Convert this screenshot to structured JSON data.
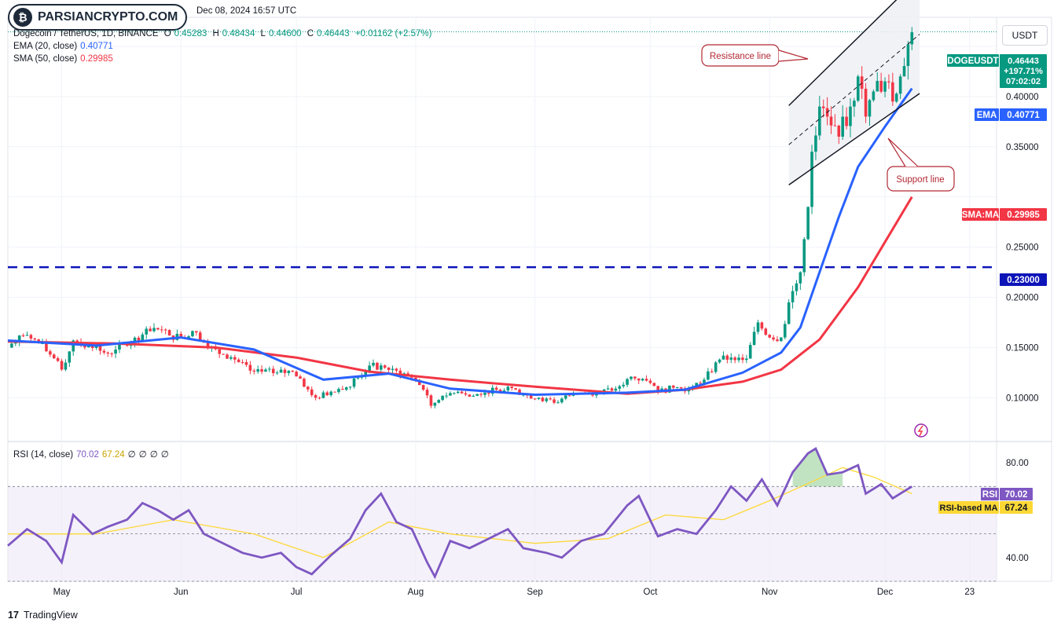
{
  "watermark": "PARSIANCRYPTO.COM",
  "header": {
    "date": "Dec 08, 2024 16:57 UTC",
    "symbol": "Dogecoin / TetherUS, 1D, BINANCE",
    "o_label": "O",
    "o": "0.45283",
    "h_label": "H",
    "h": "0.48434",
    "l_label": "L",
    "l": "0.44600",
    "c_label": "C",
    "c": "0.46443",
    "change": "+0.01162 (+2.57%)",
    "ema_label": "EMA (20, close)",
    "ema_value": "0.40771",
    "sma_label": "SMA (50, close)",
    "sma_value": "0.29985",
    "rsi_label": "RSI (14, close)",
    "rsi_value": "70.02",
    "rsi_ma_value": "67.24",
    "rsi_extra": [
      "∅",
      "∅",
      "∅",
      "∅"
    ]
  },
  "currency_button": "USDT",
  "footer_brand": "TradingView",
  "colors": {
    "up": "#089981",
    "down": "#f23645",
    "ema": "#2962ff",
    "sma": "#f23645",
    "rsi": "#7e57c2",
    "rsi_ma": "#fdd835",
    "support_level": "#0d14b8",
    "annotation": "#b22833"
  },
  "annotations": {
    "resistance": "Resistance line",
    "support": "Support line"
  },
  "price_badges": {
    "symbol": "DOGEUSDT",
    "last": "0.46443",
    "change_pct": "+197.71%",
    "countdown": "07:02:02",
    "ema_tag": "EMA",
    "ema": "0.40771",
    "sma_tag": "SMA:MA",
    "sma": "0.29985",
    "level": "0.23000",
    "rsi_tag": "RSI",
    "rsi": "70.02",
    "rsi_ma_tag": "RSI-based MA",
    "rsi_ma": "67.24"
  },
  "chart_data": [
    {
      "type": "candlestick",
      "title": "Dogecoin / TetherUS, 1D, BINANCE",
      "y_ticks": [
        "0.40000",
        "0.35000",
        "0.25000",
        "0.20000",
        "0.15000",
        "0.10000"
      ],
      "y_tick_values": [
        0.4,
        0.35,
        0.25,
        0.2,
        0.15,
        0.1
      ],
      "ylim": [
        0.058,
        0.475
      ],
      "x_ticks": [
        "May",
        "Jun",
        "Jul",
        "Aug",
        "Sep",
        "Oct",
        "Nov",
        "Dec",
        "23"
      ],
      "x_tick_dates": [
        "2024-05-01",
        "2024-06-01",
        "2024-07-01",
        "2024-08-01",
        "2024-09-01",
        "2024-10-01",
        "2024-11-01",
        "2024-12-01",
        "2024-12-23"
      ],
      "xlim": [
        "2024-04-17",
        "2024-12-30"
      ],
      "close_series": [
        [
          "2024-04-17",
          0.15
        ],
        [
          "2024-04-20",
          0.162
        ],
        [
          "2024-04-24",
          0.158
        ],
        [
          "2024-04-28",
          0.143
        ],
        [
          "2024-05-01",
          0.128
        ],
        [
          "2024-05-04",
          0.157
        ],
        [
          "2024-05-08",
          0.152
        ],
        [
          "2024-05-12",
          0.145
        ],
        [
          "2024-05-15",
          0.148
        ],
        [
          "2024-05-19",
          0.155
        ],
        [
          "2024-05-22",
          0.163
        ],
        [
          "2024-05-26",
          0.168
        ],
        [
          "2024-05-29",
          0.162
        ],
        [
          "2024-06-01",
          0.16
        ],
        [
          "2024-06-05",
          0.165
        ],
        [
          "2024-06-08",
          0.15
        ],
        [
          "2024-06-12",
          0.143
        ],
        [
          "2024-06-15",
          0.138
        ],
        [
          "2024-06-19",
          0.127
        ],
        [
          "2024-06-22",
          0.126
        ],
        [
          "2024-06-26",
          0.125
        ],
        [
          "2024-06-30",
          0.126
        ],
        [
          "2024-07-03",
          0.111
        ],
        [
          "2024-07-06",
          0.1
        ],
        [
          "2024-07-10",
          0.106
        ],
        [
          "2024-07-13",
          0.108
        ],
        [
          "2024-07-17",
          0.12
        ],
        [
          "2024-07-20",
          0.132
        ],
        [
          "2024-07-24",
          0.13
        ],
        [
          "2024-07-27",
          0.127
        ],
        [
          "2024-07-31",
          0.12
        ],
        [
          "2024-08-03",
          0.108
        ],
        [
          "2024-08-05",
          0.092
        ],
        [
          "2024-08-08",
          0.102
        ],
        [
          "2024-08-12",
          0.106
        ],
        [
          "2024-08-15",
          0.101
        ],
        [
          "2024-08-19",
          0.105
        ],
        [
          "2024-08-22",
          0.108
        ],
        [
          "2024-08-25",
          0.111
        ],
        [
          "2024-08-29",
          0.103
        ],
        [
          "2024-09-02",
          0.1
        ],
        [
          "2024-09-06",
          0.095
        ],
        [
          "2024-09-10",
          0.102
        ],
        [
          "2024-09-14",
          0.104
        ],
        [
          "2024-09-18",
          0.106
        ],
        [
          "2024-09-22",
          0.109
        ],
        [
          "2024-09-26",
          0.121
        ],
        [
          "2024-09-30",
          0.117
        ],
        [
          "2024-10-03",
          0.106
        ],
        [
          "2024-10-07",
          0.11
        ],
        [
          "2024-10-11",
          0.109
        ],
        [
          "2024-10-15",
          0.118
        ],
        [
          "2024-10-19",
          0.138
        ],
        [
          "2024-10-22",
          0.14
        ],
        [
          "2024-10-26",
          0.139
        ],
        [
          "2024-10-29",
          0.175
        ],
        [
          "2024-11-01",
          0.16
        ],
        [
          "2024-11-04",
          0.16
        ],
        [
          "2024-11-06",
          0.195
        ],
        [
          "2024-11-09",
          0.225
        ],
        [
          "2024-11-11",
          0.29
        ],
        [
          "2024-11-12",
          0.345
        ],
        [
          "2024-11-14",
          0.39
        ],
        [
          "2024-11-16",
          0.38
        ],
        [
          "2024-11-19",
          0.36
        ],
        [
          "2024-11-22",
          0.39
        ],
        [
          "2024-11-24",
          0.42
        ],
        [
          "2024-11-26",
          0.38
        ],
        [
          "2024-11-28",
          0.405
        ],
        [
          "2024-12-01",
          0.415
        ],
        [
          "2024-12-03",
          0.395
        ],
        [
          "2024-12-05",
          0.42
        ],
        [
          "2024-12-07",
          0.452
        ],
        [
          "2024-12-08",
          0.464
        ]
      ],
      "ema20_series": [
        [
          "2024-04-17",
          0.157
        ],
        [
          "2024-05-10",
          0.152
        ],
        [
          "2024-06-01",
          0.16
        ],
        [
          "2024-06-20",
          0.148
        ],
        [
          "2024-07-08",
          0.118
        ],
        [
          "2024-07-25",
          0.124
        ],
        [
          "2024-08-10",
          0.109
        ],
        [
          "2024-09-01",
          0.103
        ],
        [
          "2024-09-25",
          0.105
        ],
        [
          "2024-10-10",
          0.108
        ],
        [
          "2024-10-25",
          0.125
        ],
        [
          "2024-11-04",
          0.145
        ],
        [
          "2024-11-09",
          0.17
        ],
        [
          "2024-11-14",
          0.225
        ],
        [
          "2024-11-19",
          0.28
        ],
        [
          "2024-11-24",
          0.33
        ],
        [
          "2024-12-01",
          0.37
        ],
        [
          "2024-12-08",
          0.408
        ]
      ],
      "sma50_series": [
        [
          "2024-04-17",
          0.156
        ],
        [
          "2024-05-15",
          0.154
        ],
        [
          "2024-06-10",
          0.15
        ],
        [
          "2024-07-01",
          0.14
        ],
        [
          "2024-07-20",
          0.126
        ],
        [
          "2024-08-10",
          0.118
        ],
        [
          "2024-09-01",
          0.111
        ],
        [
          "2024-09-25",
          0.104
        ],
        [
          "2024-10-10",
          0.108
        ],
        [
          "2024-10-25",
          0.116
        ],
        [
          "2024-11-04",
          0.128
        ],
        [
          "2024-11-14",
          0.158
        ],
        [
          "2024-11-24",
          0.21
        ],
        [
          "2024-12-01",
          0.255
        ],
        [
          "2024-12-08",
          0.3
        ]
      ],
      "horizontal_level": 0.23,
      "channel": {
        "resistance": [
          [
            "2024-11-06",
            0.391
          ],
          [
            "2024-12-10",
            0.519
          ]
        ],
        "support": [
          [
            "2024-11-06",
            0.312
          ],
          [
            "2024-12-10",
            0.403
          ]
        ],
        "mid": [
          [
            "2024-11-06",
            0.352
          ],
          [
            "2024-12-10",
            0.462
          ]
        ]
      }
    },
    {
      "type": "line",
      "title": "RSI (14, close)",
      "y_ticks": [
        "80.00",
        "60.00",
        "40.00"
      ],
      "y_tick_values": [
        80,
        60,
        40
      ],
      "ylim": [
        30,
        88
      ],
      "band": [
        30,
        70
      ],
      "series": [
        {
          "name": "RSI",
          "points": [
            [
              "2024-04-17",
              45
            ],
            [
              "2024-04-22",
              52
            ],
            [
              "2024-04-27",
              47
            ],
            [
              "2024-05-01",
              38
            ],
            [
              "2024-05-04",
              58
            ],
            [
              "2024-05-09",
              50
            ],
            [
              "2024-05-13",
              53
            ],
            [
              "2024-05-18",
              56
            ],
            [
              "2024-05-22",
              63
            ],
            [
              "2024-05-26",
              60
            ],
            [
              "2024-05-30",
              56
            ],
            [
              "2024-06-03",
              60
            ],
            [
              "2024-06-07",
              50
            ],
            [
              "2024-06-12",
              46
            ],
            [
              "2024-06-17",
              42
            ],
            [
              "2024-06-22",
              40
            ],
            [
              "2024-06-27",
              42
            ],
            [
              "2024-07-01",
              36
            ],
            [
              "2024-07-05",
              33
            ],
            [
              "2024-07-10",
              41
            ],
            [
              "2024-07-15",
              48
            ],
            [
              "2024-07-19",
              60
            ],
            [
              "2024-07-23",
              67
            ],
            [
              "2024-07-27",
              55
            ],
            [
              "2024-07-31",
              52
            ],
            [
              "2024-08-04",
              38
            ],
            [
              "2024-08-06",
              32
            ],
            [
              "2024-08-10",
              47
            ],
            [
              "2024-08-15",
              44
            ],
            [
              "2024-08-20",
              48
            ],
            [
              "2024-08-25",
              52
            ],
            [
              "2024-08-29",
              44
            ],
            [
              "2024-09-04",
              42
            ],
            [
              "2024-09-08",
              40
            ],
            [
              "2024-09-13",
              47
            ],
            [
              "2024-09-19",
              50
            ],
            [
              "2024-09-25",
              62
            ],
            [
              "2024-09-28",
              66
            ],
            [
              "2024-10-03",
              49
            ],
            [
              "2024-10-08",
              52
            ],
            [
              "2024-10-13",
              50
            ],
            [
              "2024-10-18",
              60
            ],
            [
              "2024-10-22",
              70
            ],
            [
              "2024-10-26",
              64
            ],
            [
              "2024-10-30",
              73
            ],
            [
              "2024-11-03",
              62
            ],
            [
              "2024-11-07",
              76
            ],
            [
              "2024-11-11",
              84
            ],
            [
              "2024-11-13",
              86
            ],
            [
              "2024-11-16",
              75
            ],
            [
              "2024-11-20",
              76
            ],
            [
              "2024-11-24",
              79
            ],
            [
              "2024-11-26",
              67
            ],
            [
              "2024-11-30",
              71
            ],
            [
              "2024-12-03",
              65
            ],
            [
              "2024-12-06",
              68
            ],
            [
              "2024-12-08",
              70
            ]
          ]
        },
        {
          "name": "RSI-based MA",
          "points": [
            [
              "2024-04-17",
              50
            ],
            [
              "2024-05-10",
              50
            ],
            [
              "2024-05-30",
              56
            ],
            [
              "2024-06-20",
              50
            ],
            [
              "2024-07-08",
              40
            ],
            [
              "2024-07-25",
              55
            ],
            [
              "2024-08-10",
              50
            ],
            [
              "2024-09-01",
              46
            ],
            [
              "2024-09-20",
              48
            ],
            [
              "2024-10-05",
              58
            ],
            [
              "2024-10-20",
              56
            ],
            [
              "2024-11-01",
              64
            ],
            [
              "2024-11-12",
              72
            ],
            [
              "2024-11-20",
              78
            ],
            [
              "2024-11-28",
              74
            ],
            [
              "2024-12-08",
              67
            ]
          ]
        }
      ]
    }
  ]
}
